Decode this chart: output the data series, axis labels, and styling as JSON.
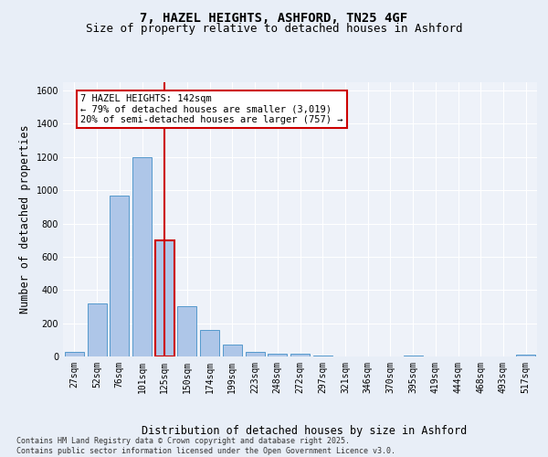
{
  "title_line1": "7, HAZEL HEIGHTS, ASHFORD, TN25 4GF",
  "title_line2": "Size of property relative to detached houses in Ashford",
  "xlabel": "Distribution of detached houses by size in Ashford",
  "ylabel": "Number of detached properties",
  "categories": [
    "27sqm",
    "52sqm",
    "76sqm",
    "101sqm",
    "125sqm",
    "150sqm",
    "174sqm",
    "199sqm",
    "223sqm",
    "248sqm",
    "272sqm",
    "297sqm",
    "321sqm",
    "346sqm",
    "370sqm",
    "395sqm",
    "419sqm",
    "444sqm",
    "468sqm",
    "493sqm",
    "517sqm"
  ],
  "values": [
    25,
    320,
    970,
    1200,
    700,
    300,
    160,
    70,
    25,
    18,
    15,
    8,
    0,
    0,
    0,
    8,
    0,
    0,
    0,
    0,
    12
  ],
  "bar_color": "#aec6e8",
  "bar_edge_color": "#5599cc",
  "highlight_bar_index": 4,
  "highlight_bar_color": "#aec6e8",
  "highlight_bar_edge_color": "#cc0000",
  "vline_x": 4.0,
  "vline_color": "#cc0000",
  "annotation_text": "7 HAZEL HEIGHTS: 142sqm\n← 79% of detached houses are smaller (3,019)\n20% of semi-detached houses are larger (757) →",
  "annotation_box_color": "#ffffff",
  "annotation_box_edge_color": "#cc0000",
  "ylim": [
    0,
    1650
  ],
  "yticks": [
    0,
    200,
    400,
    600,
    800,
    1000,
    1200,
    1400,
    1600
  ],
  "footer_text": "Contains HM Land Registry data © Crown copyright and database right 2025.\nContains public sector information licensed under the Open Government Licence v3.0.",
  "background_color": "#e8eef7",
  "plot_background_color": "#eef2f9",
  "grid_color": "#ffffff",
  "title_fontsize": 10,
  "subtitle_fontsize": 9,
  "axis_label_fontsize": 8.5,
  "tick_fontsize": 7,
  "annotation_fontsize": 7.5,
  "footer_fontsize": 6,
  "bar_width": 0.85
}
